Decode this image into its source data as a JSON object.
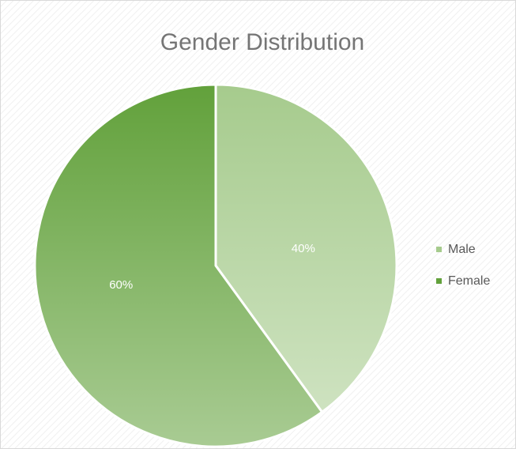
{
  "chart_data": {
    "type": "pie",
    "title": "Gender Distribution",
    "categories": [
      "Male",
      "Female"
    ],
    "values": [
      40,
      60
    ],
    "value_labels": [
      "40%",
      "60%"
    ],
    "colors": [
      "#a6cb8d",
      "#62a13b"
    ],
    "legend": "right"
  }
}
